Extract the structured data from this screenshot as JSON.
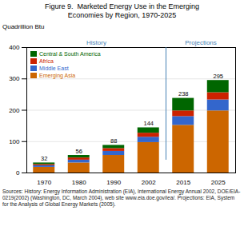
{
  "chart_data": {
    "type": "bar",
    "title": "Figure 9.  Marketed Energy Use in the Emerging",
    "subtitle": "Economies by Region, 1970-2025",
    "ylabel": "Quadrillion Btu",
    "categories": [
      "1970",
      "1980",
      "1990",
      "2002",
      "2015",
      "2025"
    ],
    "series": [
      {
        "name": "Emerging Asia",
        "color": "#CC6600",
        "values": [
          18,
          32,
          56,
          97,
          152,
          198
        ]
      },
      {
        "name": "Middle East",
        "color": "#3366CC",
        "values": [
          5,
          9,
          13,
          17,
          28,
          35
        ]
      },
      {
        "name": "Africa",
        "color": "#CC2200",
        "values": [
          4,
          7,
          9,
          13,
          18,
          23
        ]
      },
      {
        "name": "Central & South America",
        "color": "#006600",
        "values": [
          5,
          8,
          10,
          17,
          40,
          39
        ]
      }
    ],
    "totals": [
      32,
      56,
      88,
      144,
      238,
      295
    ],
    "stacked": true,
    "annotations": [
      {
        "text": "History",
        "categories": [
          "1970",
          "2002"
        ]
      },
      {
        "text": "Projections",
        "categories": [
          "2015",
          "2025"
        ]
      }
    ],
    "caption": "Sources: History: Energy Information Administration (EIA), International Energy Annual 2002, DOE/EIA-0219(2002) (Washington, DC, March 2004), web site www.eia.doe.gov/iea/. Projections: EIA, System for the Analysis of Global Energy Markets (2005).",
    "ylim": [
      0,
      400
    ],
    "yticks": [
      0,
      100,
      200,
      300,
      400
    ],
    "grid": true,
    "legend": "upper left"
  }
}
